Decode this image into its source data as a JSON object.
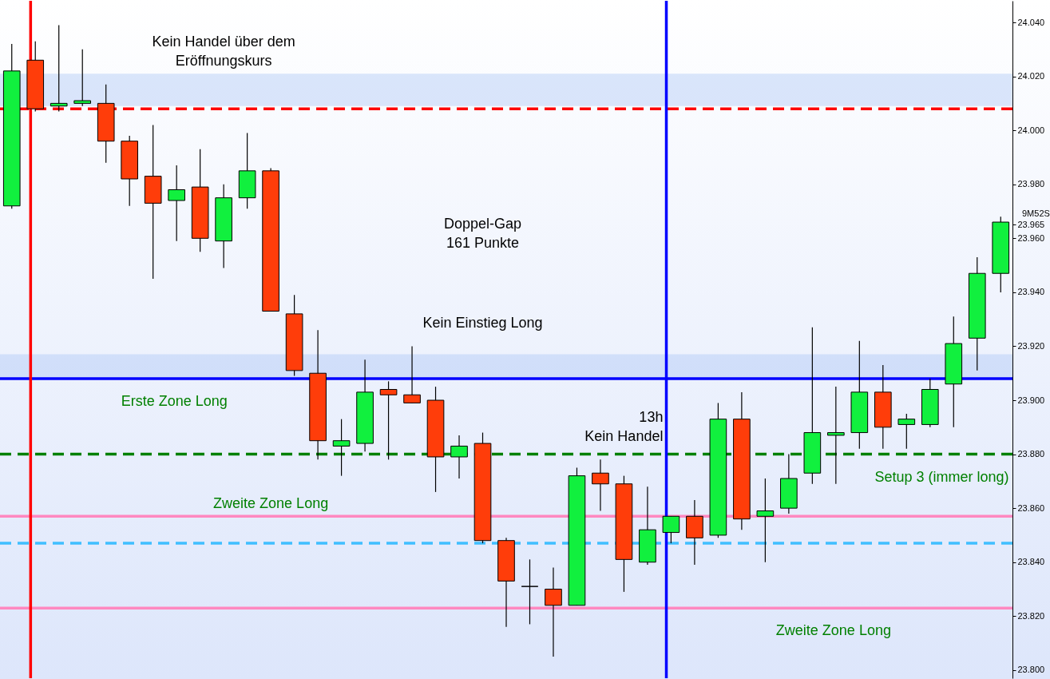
{
  "chart_data": {
    "type": "candlestick",
    "categories": [
      null,
      null,
      null,
      null,
      null,
      null,
      null,
      null,
      null,
      null,
      null,
      null,
      null,
      null,
      null,
      null,
      null,
      null,
      null,
      null,
      null,
      null,
      null,
      null,
      null,
      null,
      null,
      null,
      null,
      null,
      null,
      null,
      null,
      null,
      null,
      null,
      null,
      null,
      null,
      null,
      null,
      null,
      null
    ],
    "ohlc": [
      [
        23.972,
        24.032,
        23.971,
        24.022
      ],
      [
        24.026,
        24.033,
        24.007,
        24.008
      ],
      [
        24.009,
        24.039,
        24.007,
        24.01
      ],
      [
        24.01,
        24.03,
        24.009,
        24.011
      ],
      [
        24.01,
        24.017,
        23.988,
        23.996
      ],
      [
        23.996,
        23.998,
        23.972,
        23.982
      ],
      [
        23.983,
        24.002,
        23.945,
        23.973
      ],
      [
        23.974,
        23.987,
        23.959,
        23.978
      ],
      [
        23.979,
        23.993,
        23.955,
        23.96
      ],
      [
        23.959,
        23.98,
        23.949,
        23.975
      ],
      [
        23.975,
        23.999,
        23.971,
        23.985
      ],
      [
        23.985,
        23.986,
        23.933,
        23.933
      ],
      [
        23.932,
        23.939,
        23.909,
        23.911
      ],
      [
        23.91,
        23.926,
        23.878,
        23.885
      ],
      [
        23.883,
        23.893,
        23.872,
        23.885
      ],
      [
        23.884,
        23.915,
        23.881,
        23.903
      ],
      [
        23.904,
        23.907,
        23.878,
        23.902
      ],
      [
        23.902,
        23.92,
        23.899,
        23.899
      ],
      [
        23.9,
        23.905,
        23.866,
        23.879
      ],
      [
        23.879,
        23.887,
        23.871,
        23.883
      ],
      [
        23.884,
        23.888,
        23.847,
        23.848
      ],
      [
        23.848,
        23.849,
        23.816,
        23.833
      ],
      [
        23.831,
        23.841,
        23.817,
        23.831
      ],
      [
        23.83,
        23.838,
        23.805,
        23.824
      ],
      [
        23.824,
        23.875,
        23.824,
        23.872
      ],
      [
        23.873,
        23.878,
        23.859,
        23.869
      ],
      [
        23.869,
        23.872,
        23.829,
        23.841
      ],
      [
        23.84,
        23.868,
        23.839,
        23.852
      ],
      [
        23.851,
        23.857,
        23.847,
        23.857
      ],
      [
        23.857,
        23.863,
        23.839,
        23.849
      ],
      [
        23.85,
        23.899,
        23.849,
        23.893
      ],
      [
        23.893,
        23.903,
        23.852,
        23.856
      ],
      [
        23.857,
        23.871,
        23.84,
        23.859
      ],
      [
        23.86,
        23.88,
        23.858,
        23.871
      ],
      [
        23.873,
        23.927,
        23.869,
        23.888
      ],
      [
        23.887,
        23.905,
        23.869,
        23.888
      ],
      [
        23.888,
        23.922,
        23.882,
        23.903
      ],
      [
        23.903,
        23.913,
        23.882,
        23.89
      ],
      [
        23.891,
        23.895,
        23.882,
        23.893
      ],
      [
        23.891,
        23.908,
        23.89,
        23.904
      ],
      [
        23.906,
        23.931,
        23.89,
        23.921
      ],
      [
        23.923,
        23.953,
        23.911,
        23.947
      ],
      [
        23.947,
        23.968,
        23.94,
        23.966
      ]
    ],
    "colors": [
      "#11f03e",
      "#ff3d0a",
      "#11f03e",
      "#11f03e",
      "#ff3d0a",
      "#ff3d0a",
      "#ff3d0a",
      "#11f03e",
      "#ff3d0a",
      "#11f03e",
      "#11f03e",
      "#ff3d0a",
      "#ff3d0a",
      "#ff3d0a",
      "#11f03e",
      "#11f03e",
      "#ff3d0a",
      "#ff3d0a",
      "#ff3d0a",
      "#11f03e",
      "#ff3d0a",
      "#ff3d0a",
      "#000000",
      "#ff3d0a",
      "#11f03e",
      "#ff3d0a",
      "#ff3d0a",
      "#11f03e",
      "#11f03e",
      "#ff3d0a",
      "#11f03e",
      "#ff3d0a",
      "#11f03e",
      "#11f03e",
      "#11f03e",
      "#11f03e",
      "#11f03e",
      "#ff3d0a",
      "#11f03e",
      "#11f03e",
      "#11f03e",
      "#11f03e",
      "#11f03e"
    ],
    "bands": [
      {
        "axis": "y",
        "from": 24.009,
        "to": 24.021,
        "label": "Kein Handel über dem\nEröffnungskurs",
        "color": "#a8c4f4"
      },
      {
        "axis": "y",
        "from": 23.908,
        "to": 23.917,
        "label": "Kein Einstieg Long",
        "color": "#a8c4f4"
      }
    ],
    "ref_lines": [
      {
        "axis": "y",
        "value": 24.008,
        "color": "#ff0000",
        "line_style": "dashed"
      },
      {
        "axis": "y",
        "value": 23.908,
        "color": "#0000ff",
        "line_style": "solid",
        "label": "Erste Zone Long"
      },
      {
        "axis": "y",
        "value": 23.88,
        "color": "#008000",
        "line_style": "dashed",
        "label": "Setup 3 (immer long)"
      },
      {
        "axis": "y",
        "value": 23.857,
        "color": "#ff88c0",
        "line_style": "solid",
        "label": "Zweite  Zone Long"
      },
      {
        "axis": "y",
        "value": 23.847,
        "color": "#40bfff",
        "line_style": "dashed"
      },
      {
        "axis": "y",
        "value": 23.823,
        "color": "#ff88c0",
        "line_style": "solid",
        "label": "Zweite  Zone Long"
      }
    ],
    "annotations": [
      "Doppel-Gap\n161 Punkte",
      "13h\nKein Handel",
      "9M52S"
    ],
    "ylim": [
      23.797,
      24.048
    ],
    "yticks": [
      {
        "value": 23.8,
        "label": "23.800"
      },
      {
        "value": 23.82,
        "label": "23.820"
      },
      {
        "value": 23.84,
        "label": "23.840"
      },
      {
        "value": 23.86,
        "label": "23.860"
      },
      {
        "value": 23.88,
        "label": "23.880"
      },
      {
        "value": 23.9,
        "label": "23.900"
      },
      {
        "value": 23.92,
        "label": "23.920"
      },
      {
        "value": 23.94,
        "label": "23.940"
      },
      {
        "value": 23.96,
        "label": "23.960"
      },
      {
        "value": 23.965,
        "label": "23.965"
      },
      {
        "value": 23.98,
        "label": "23.980"
      },
      {
        "value": 24,
        "label": "24.000"
      },
      {
        "value": 24.02,
        "label": "24.020"
      },
      {
        "value": 24.04,
        "label": "24.040"
      }
    ],
    "grid": false
  }
}
